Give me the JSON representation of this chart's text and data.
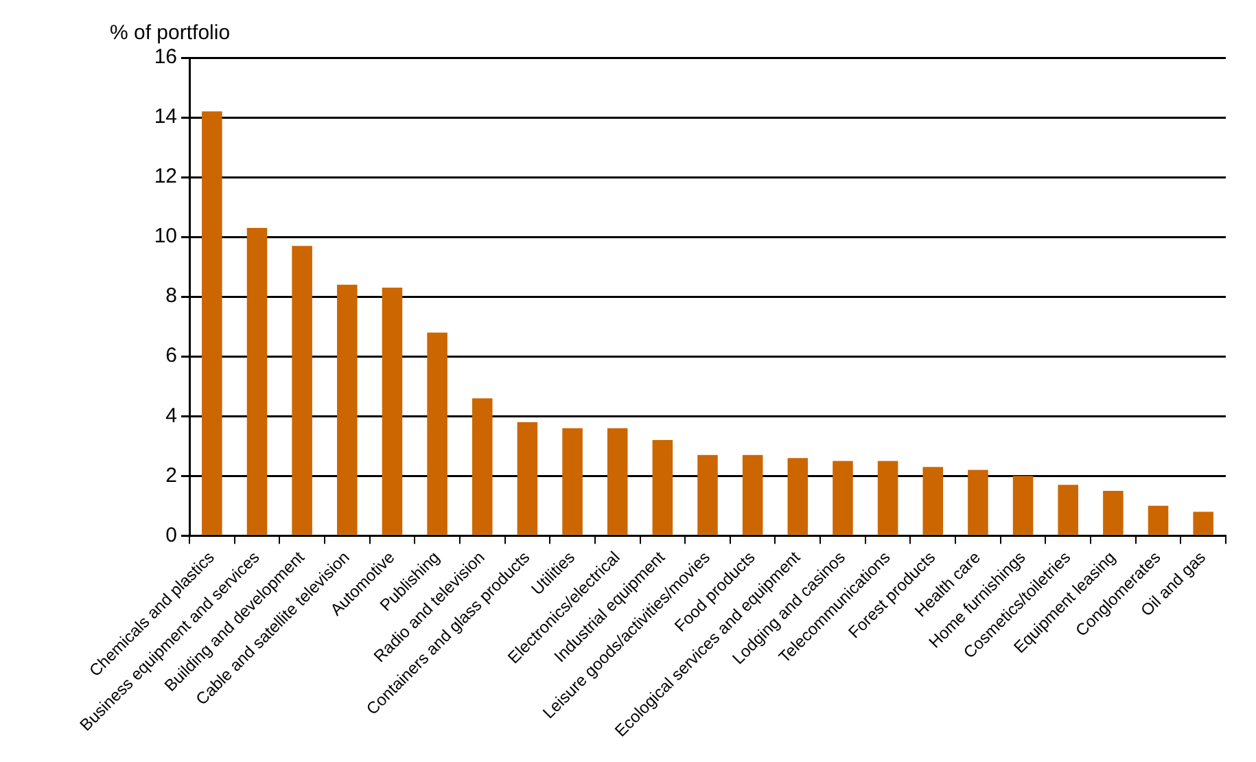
{
  "chart_data": {
    "type": "bar",
    "ylabel": "% of portfolio",
    "categories": [
      "Chemicals and plastics",
      "Business equipment and services",
      "Building and development",
      "Cable and satellite television",
      "Automotive",
      "Publishing",
      "Radio and television",
      "Containers and glass products",
      "Utilities",
      "Electronics/electrical",
      "Industrial equipment",
      "Leisure goods/activities/movies",
      "Food products",
      "Ecological services and equipment",
      "Lodging and casinos",
      "Telecommunications",
      "Forest products",
      "Health care",
      "Home furnishings",
      "Cosmetics/toiletries",
      "Equipment leasing",
      "Conglomerates",
      "Oil and gas"
    ],
    "values": [
      14.2,
      10.3,
      9.7,
      8.4,
      8.3,
      6.8,
      4.6,
      3.8,
      3.6,
      3.6,
      3.2,
      2.7,
      2.7,
      2.6,
      2.5,
      2.5,
      2.3,
      2.2,
      2.0,
      1.7,
      1.5,
      1.0,
      0.8
    ],
    "color": "#cc6600",
    "ylim": [
      0,
      16
    ],
    "yticks": [
      0,
      2,
      4,
      6,
      8,
      10,
      12,
      14,
      16
    ],
    "grid": "y",
    "legend": false
  }
}
